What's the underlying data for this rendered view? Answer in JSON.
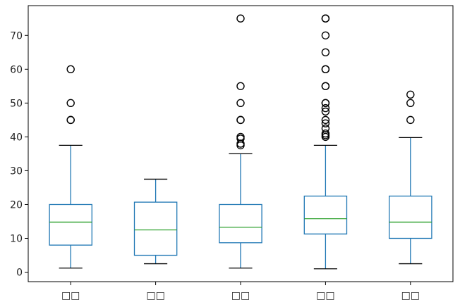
{
  "chart_data": {
    "type": "box",
    "categories": [
      "□□",
      "□□",
      "□□",
      "□□",
      "□□"
    ],
    "boxes": [
      {
        "whisker_low": 1.2,
        "q1": 8,
        "median": 14.8,
        "q3": 20,
        "whisker_high": 37.5,
        "outliers": [
          45,
          45,
          50,
          60
        ]
      },
      {
        "whisker_low": 2.5,
        "q1": 5,
        "median": 12.5,
        "q3": 20.7,
        "whisker_high": 27.5,
        "outliers": []
      },
      {
        "whisker_low": 1.2,
        "q1": 8.7,
        "median": 13.3,
        "q3": 20,
        "whisker_high": 35,
        "outliers": [
          37.5,
          38,
          39.5,
          40,
          45,
          45,
          50,
          55,
          75
        ]
      },
      {
        "whisker_low": 1,
        "q1": 11.3,
        "median": 15.8,
        "q3": 22.5,
        "whisker_high": 37.5,
        "outliers": [
          40,
          40.5,
          41,
          42.5,
          44,
          45,
          47.5,
          48.5,
          50,
          50,
          55,
          55,
          60,
          60,
          65,
          70,
          75,
          75
        ]
      },
      {
        "whisker_low": 2.5,
        "q1": 10,
        "median": 14.8,
        "q3": 22.5,
        "whisker_high": 39.8,
        "outliers": [
          45,
          50,
          52.5
        ]
      }
    ],
    "yticks": [
      0,
      10,
      20,
      30,
      40,
      50,
      60,
      70
    ],
    "ylim": [
      -2.8,
      78.8
    ],
    "title": "",
    "xlabel": "",
    "ylabel": "",
    "grid": false,
    "colors": {
      "box": "#1f77b4",
      "median": "#2ca02c",
      "whisker": "#1f77b4",
      "cap": "#000000",
      "outlier": "#000000",
      "axis": "#000000"
    }
  }
}
